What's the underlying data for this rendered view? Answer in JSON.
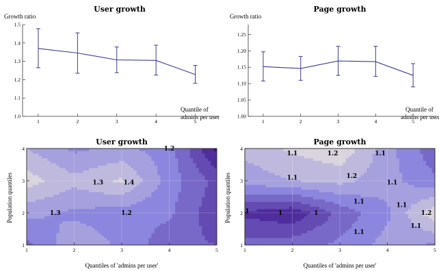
{
  "colors": {
    "line": "#3a3a96",
    "contour_low": "#3b0f86",
    "contour_mid": "#8c86de",
    "contour_high": "#f2eedc"
  },
  "chart_data": [
    {
      "type": "line",
      "title": "User growth",
      "ylabel": "Growth ratio",
      "xlabel": "Quantile of admins per user",
      "x": [
        1,
        2,
        3,
        4,
        5
      ],
      "series": [
        {
          "values": [
            1.37,
            1.345,
            1.308,
            1.305,
            1.228
          ],
          "err_low": [
            1.265,
            1.235,
            1.238,
            1.225,
            1.18
          ],
          "err_high": [
            1.478,
            1.455,
            1.378,
            1.388,
            1.278
          ]
        }
      ],
      "xticks": [
        "1",
        "2",
        "3",
        "4",
        "5"
      ],
      "yticks": [
        "1.0",
        "1.1",
        "1.2",
        "1.3",
        "1.4",
        "1.5"
      ],
      "ylim": [
        1.0,
        1.5
      ],
      "xlim": [
        0.6,
        5.6
      ]
    },
    {
      "type": "line",
      "title": "Page growth",
      "ylabel": "Growth ratio",
      "xlabel": "Quantile of admins per user",
      "x": [
        1,
        2,
        3,
        4,
        5
      ],
      "series": [
        {
          "values": [
            1.152,
            1.146,
            1.169,
            1.167,
            1.125
          ],
          "err_low": [
            1.108,
            1.11,
            1.125,
            1.122,
            1.09
          ],
          "err_high": [
            1.197,
            1.183,
            1.214,
            1.214,
            1.161
          ]
        }
      ],
      "xticks": [
        "1",
        "2",
        "3",
        "4",
        "5"
      ],
      "yticks": [
        "1.00",
        "1.05",
        "1.10",
        "1.15",
        "1.20",
        "1.25"
      ],
      "ylim": [
        1.0,
        1.28
      ],
      "xlim": [
        0.6,
        5.6
      ]
    },
    {
      "type": "heatmap",
      "title": "User growth",
      "xlabel": "Quantiles of 'admins per user'",
      "ylabel": "Population quantiles",
      "xticks": [
        "1",
        "2",
        "3",
        "4",
        "5"
      ],
      "yticks": [
        "1",
        "2",
        "3",
        "4"
      ],
      "x": [
        1,
        2,
        3,
        4,
        5
      ],
      "y": [
        1,
        2,
        3,
        4
      ],
      "z": [
        [
          1.15,
          1.28,
          1.22,
          1.12,
          1.1
        ],
        [
          1.25,
          1.22,
          1.2,
          1.18,
          1.05
        ],
        [
          1.4,
          1.32,
          1.38,
          1.2,
          1.08
        ],
        [
          1.3,
          1.22,
          1.25,
          1.2,
          0.95
        ]
      ],
      "zlim": [
        0.9,
        1.5
      ],
      "contour_labels": [
        {
          "text": "1.2",
          "x": 4.0,
          "y": 4.0
        },
        {
          "text": "1.3",
          "x": 2.5,
          "y": 2.95
        },
        {
          "text": "1.4",
          "x": 3.15,
          "y": 2.95
        },
        {
          "text": "1.3",
          "x": 1.6,
          "y": 2.0
        },
        {
          "text": "1.2",
          "x": 3.1,
          "y": 2.0
        }
      ]
    },
    {
      "type": "heatmap",
      "title": "Page growth",
      "xlabel": "Quantiles of 'admins per user'",
      "ylabel": "Population quantiles",
      "xticks": [
        "1",
        "2",
        "3",
        "4",
        "5"
      ],
      "yticks": [
        "1",
        "2",
        "3",
        "4"
      ],
      "x": [
        1,
        2,
        3,
        4,
        5
      ],
      "y": [
        1,
        2,
        3,
        4
      ],
      "z": [
        [
          1.05,
          1.06,
          1.08,
          1.12,
          1.1
        ],
        [
          1.0,
          0.98,
          1.05,
          1.1,
          1.2
        ],
        [
          1.12,
          1.14,
          1.15,
          1.12,
          1.08
        ],
        [
          1.15,
          1.18,
          1.2,
          1.12,
          1.05
        ]
      ],
      "zlim": [
        0.94,
        1.24
      ],
      "contour_labels": [
        {
          "text": "1.1",
          "x": 2.0,
          "y": 3.85
        },
        {
          "text": "1.2",
          "x": 2.85,
          "y": 3.85
        },
        {
          "text": "1.1",
          "x": 3.85,
          "y": 3.85
        },
        {
          "text": "1.1",
          "x": 2.0,
          "y": 3.1
        },
        {
          "text": "1.2",
          "x": 3.25,
          "y": 3.15
        },
        {
          "text": "1.1",
          "x": 4.1,
          "y": 2.95
        },
        {
          "text": "1.1",
          "x": 3.4,
          "y": 2.35
        },
        {
          "text": "1.1",
          "x": 4.3,
          "y": 2.25
        },
        {
          "text": "1",
          "x": 1.05,
          "y": 2.05
        },
        {
          "text": "1",
          "x": 1.75,
          "y": 2.0
        },
        {
          "text": "1",
          "x": 2.5,
          "y": 2.0
        },
        {
          "text": "1.2",
          "x": 4.82,
          "y": 2.0
        },
        {
          "text": "1.1",
          "x": 4.6,
          "y": 1.6
        },
        {
          "text": "1.1",
          "x": 3.4,
          "y": 1.4
        }
      ]
    }
  ]
}
